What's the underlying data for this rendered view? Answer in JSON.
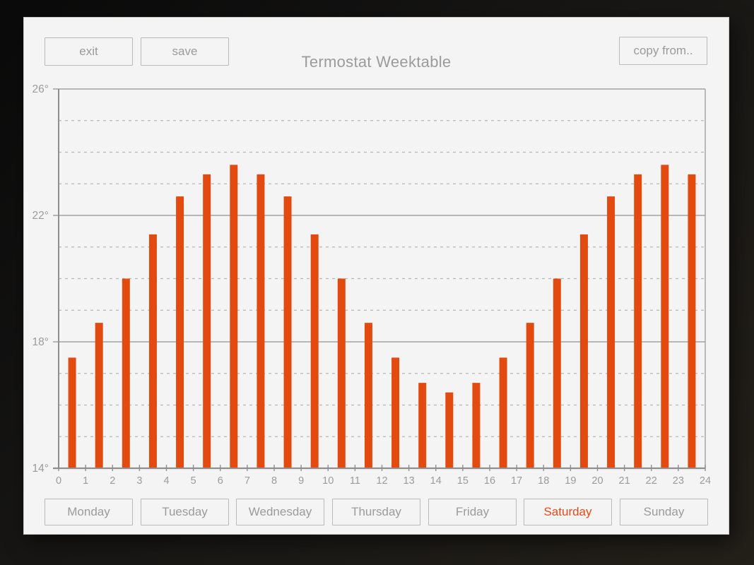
{
  "window": {
    "title": "Termostat Weektable"
  },
  "toolbar": {
    "exit_label": "exit",
    "save_label": "save",
    "copy_from_label": "copy from.."
  },
  "days": {
    "selected_day": "Saturday",
    "items": [
      {
        "label": "Monday",
        "selected": false
      },
      {
        "label": "Tuesday",
        "selected": false
      },
      {
        "label": "Wednesday",
        "selected": false
      },
      {
        "label": "Thursday",
        "selected": false
      },
      {
        "label": "Friday",
        "selected": false
      },
      {
        "label": "Saturday",
        "selected": true
      },
      {
        "label": "Sunday",
        "selected": false
      }
    ]
  },
  "colors": {
    "bar": "#e24a0f",
    "selected_day_text": "#e8491a",
    "axis": "#8f8f8f",
    "grid_major": "#a2a2a2",
    "grid_minor": "#b6b6b6",
    "label_text": "#9b9b9b",
    "window_bg": "#f4f4f4",
    "button_border": "#b9b9b9"
  },
  "chart_data": {
    "type": "bar",
    "title": "Termostat Weektable",
    "xlabel": "",
    "ylabel": "",
    "unit": "°",
    "xlim": [
      0,
      24
    ],
    "ylim": [
      14,
      26
    ],
    "grid": "dashed line each degree, solid every 4 degrees",
    "legend": "none",
    "x_tick_labels": [
      "0",
      "1",
      "2",
      "3",
      "4",
      "5",
      "6",
      "7",
      "8",
      "9",
      "10",
      "11",
      "12",
      "13",
      "14",
      "15",
      "16",
      "17",
      "18",
      "19",
      "20",
      "21",
      "22",
      "23",
      "24"
    ],
    "y_major_ticks": [
      14,
      18,
      22,
      26
    ],
    "y_major_tick_labels": [
      "14°",
      "18°",
      "22°",
      "26°"
    ],
    "hours": [
      0,
      1,
      2,
      3,
      4,
      5,
      6,
      7,
      8,
      9,
      10,
      11,
      12,
      13,
      14,
      15,
      16,
      17,
      18,
      19,
      20,
      21,
      22,
      23
    ],
    "values": [
      17.5,
      18.6,
      20.0,
      21.4,
      22.6,
      23.3,
      23.6,
      23.3,
      22.6,
      21.4,
      20.0,
      18.6,
      17.5,
      16.7,
      16.4,
      16.7,
      17.5,
      18.6,
      20.0,
      21.4,
      22.6,
      23.3,
      23.6,
      23.3
    ]
  }
}
